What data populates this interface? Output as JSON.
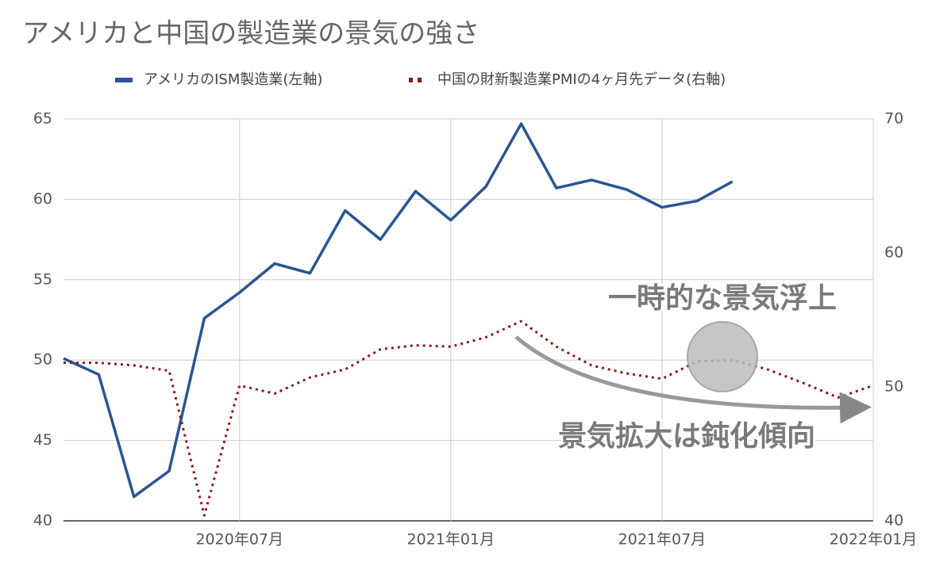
{
  "chart_data": {
    "type": "line",
    "title": "アメリカと中国の製造業の景気の強さ",
    "categories": [
      null,
      null,
      null,
      null,
      null,
      "2020年07月",
      null,
      null,
      null,
      null,
      null,
      "2021年01月",
      null,
      null,
      null,
      null,
      null,
      "2021年07月",
      null,
      null,
      null,
      null,
      null,
      "2022年01月"
    ],
    "series": [
      {
        "name": "アメリカのISM製造業(左軸)",
        "color": "#2a5592",
        "style": "solid",
        "values": [
          50.1,
          49.1,
          41.5,
          43.1,
          52.6,
          54.2,
          56.0,
          55.4,
          59.3,
          57.5,
          60.5,
          58.7,
          60.8,
          64.7,
          60.7,
          61.2,
          60.6,
          59.5,
          59.9,
          61.1,
          null,
          null,
          null,
          null
        ]
      },
      {
        "name": "中国の財新製造業PMIの4ヶ月先データ(右軸)",
        "color": "#8b1a1a",
        "style": "dotted",
        "axis": "y2",
        "values": [
          51.8,
          51.8,
          51.6,
          51.2,
          40.4,
          50.1,
          49.5,
          50.7,
          51.3,
          52.8,
          53.1,
          53.0,
          53.7,
          54.9,
          53.0,
          51.6,
          51.0,
          50.6,
          51.9,
          52.0,
          51.3,
          50.3,
          49.2,
          50.1
        ]
      }
    ],
    "ylim": [
      40,
      65
    ],
    "yticks": [
      40,
      45,
      50,
      55,
      60,
      65
    ],
    "y2lim": [
      40,
      70
    ],
    "y2ticks": [
      40,
      50,
      60,
      70
    ],
    "grid": true,
    "legend": "top",
    "annotations": [
      "一時的な景気浮上",
      "景気拡大は鈍化傾向"
    ]
  }
}
